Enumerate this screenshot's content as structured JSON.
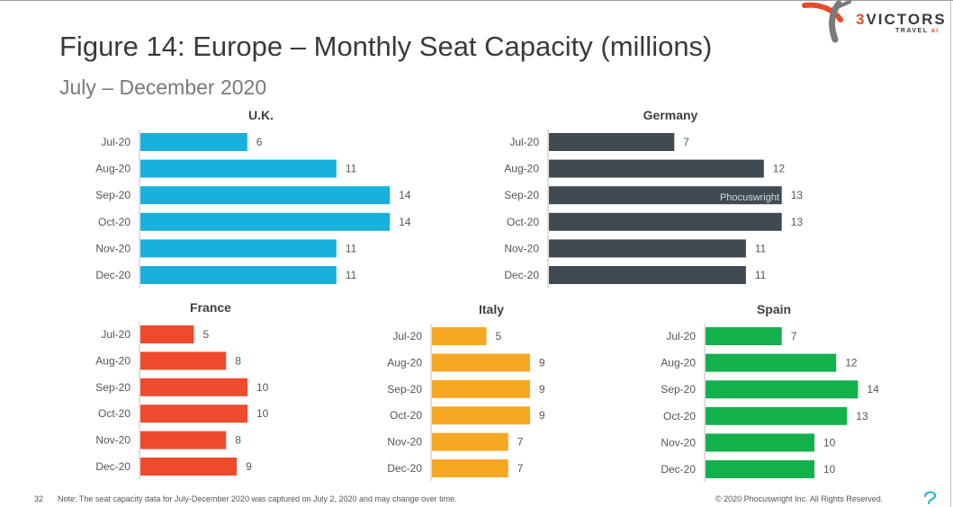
{
  "header": {
    "title": "Figure 14: Europe – Monthly Seat Capacity (millions)",
    "subtitle": "July – December 2020"
  },
  "logo": {
    "name_prefix": "3",
    "name_rest": "VICTORS",
    "tagline": "TRAVEL",
    "tagline_suffix": "ai",
    "colors": {
      "orange": "#e8492b",
      "gray": "#7a7a7a"
    }
  },
  "watermark": "Phocuswright",
  "chart_data": [
    {
      "type": "bar",
      "orientation": "horizontal",
      "title": "U.K.",
      "color": "#1ab0dc",
      "categories": [
        "Jul-20",
        "Aug-20",
        "Sep-20",
        "Oct-20",
        "Nov-20",
        "Dec-20"
      ],
      "values": [
        6,
        11,
        14,
        14,
        11,
        11
      ],
      "xlim": [
        0,
        16
      ]
    },
    {
      "type": "bar",
      "orientation": "horizontal",
      "title": "Germany",
      "color": "#404a53",
      "categories": [
        "Jul-20",
        "Aug-20",
        "Sep-20",
        "Oct-20",
        "Nov-20",
        "Dec-20"
      ],
      "values": [
        7,
        12,
        13,
        13,
        11,
        11
      ],
      "xlim": [
        0,
        16
      ]
    },
    {
      "type": "bar",
      "orientation": "horizontal",
      "title": "France",
      "color": "#f04a2c",
      "categories": [
        "Jul-20",
        "Aug-20",
        "Sep-20",
        "Oct-20",
        "Nov-20",
        "Dec-20"
      ],
      "values": [
        5,
        8,
        10,
        10,
        8,
        9
      ],
      "xlim": [
        0,
        16
      ]
    },
    {
      "type": "bar",
      "orientation": "horizontal",
      "title": "Italy",
      "color": "#f5a623",
      "categories": [
        "Jul-20",
        "Aug-20",
        "Sep-20",
        "Oct-20",
        "Nov-20",
        "Dec-20"
      ],
      "values": [
        5,
        9,
        9,
        9,
        7,
        7
      ],
      "xlim": [
        0,
        16
      ]
    },
    {
      "type": "bar",
      "orientation": "horizontal",
      "title": "Spain",
      "color": "#14b04c",
      "categories": [
        "Jul-20",
        "Aug-20",
        "Sep-20",
        "Oct-20",
        "Nov-20",
        "Dec-20"
      ],
      "values": [
        7,
        12,
        14,
        13,
        10,
        10
      ],
      "xlim": [
        0,
        16
      ]
    }
  ],
  "footer": {
    "page_number": "32",
    "note": "Note: The seat capacity data for July-December 2020 was captured on July 2, 2020 and may change over time.",
    "copyright": "© 2020 Phocuswright Inc. All Rights Reserved."
  }
}
